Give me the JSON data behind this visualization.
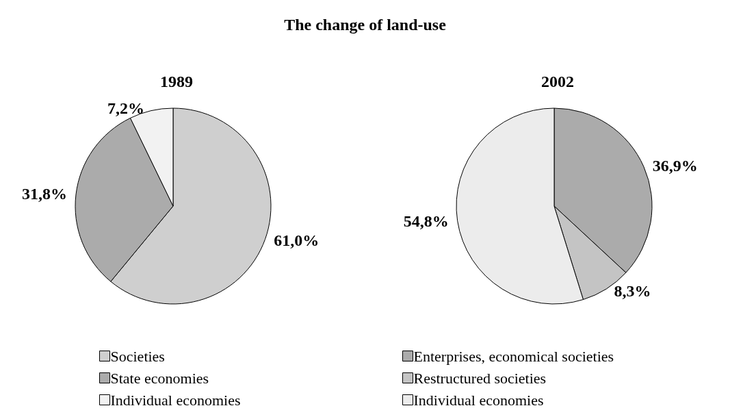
{
  "chart_data": [
    {
      "type": "pie",
      "title": "1989",
      "annotations": [
        "The change of land-use"
      ],
      "categories": [
        "Societies",
        "State economies",
        "Individual economies"
      ],
      "values": [
        61.0,
        31.8,
        7.2
      ],
      "value_labels": [
        "61,0%",
        "31,8%",
        "7,2%"
      ],
      "colors": [
        "#cfcfcf",
        "#ababab",
        "#f2f2f2"
      ],
      "legend": "bottom"
    },
    {
      "type": "pie",
      "title": "2002",
      "categories": [
        "Enterprises, economical societies",
        "Restructured societies",
        "Individual economies"
      ],
      "values": [
        36.9,
        8.3,
        54.8
      ],
      "value_labels": [
        "36,9%",
        "8,3%",
        "54,8%"
      ],
      "colors": [
        "#ababab",
        "#c4c4c4",
        "#ececec"
      ],
      "legend": "bottom"
    }
  ]
}
